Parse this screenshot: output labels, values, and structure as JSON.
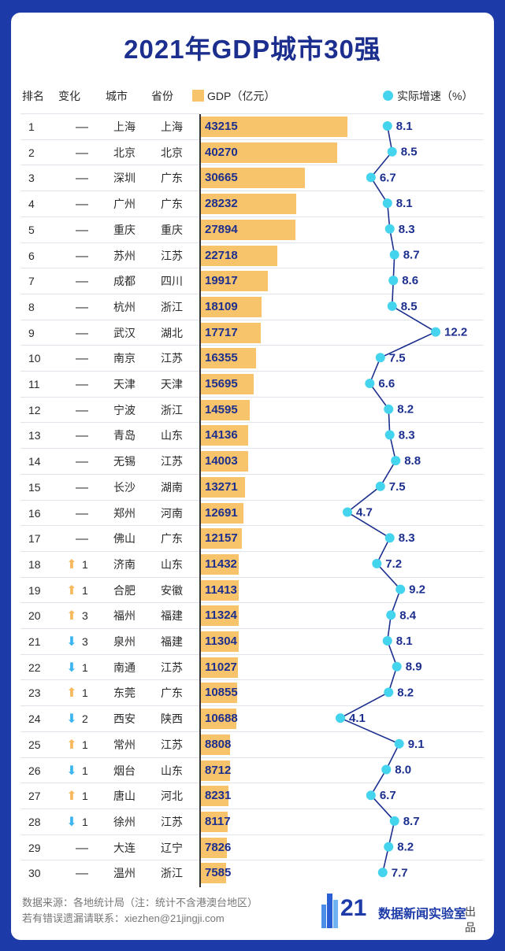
{
  "title": "2021年GDP城市30强",
  "headers": {
    "rank": "排名",
    "change": "变化",
    "city": "城市",
    "province": "省份",
    "gdp": "GDP（亿元）",
    "growth": "实际增速（%）"
  },
  "colors": {
    "bar": "#f8c46b",
    "dot": "#45d4ee",
    "line": "#1c2f8e",
    "up": "#f8b85c",
    "down": "#3cb5ee",
    "background": "#1c3aa8"
  },
  "chart_data": {
    "type": "table",
    "title": "2021年GDP城市30强",
    "columns": [
      "排名",
      "变化",
      "城市",
      "省份",
      "GDP（亿元）",
      "实际增速（%）"
    ],
    "gdp_max": 43215,
    "growth_range": [
      4.1,
      12.2
    ],
    "rows": [
      {
        "rank": "1",
        "dir": "none",
        "change": "",
        "city": "上海",
        "province": "上海",
        "gdp": 43215,
        "growth": "8.1"
      },
      {
        "rank": "2",
        "dir": "none",
        "change": "",
        "city": "北京",
        "province": "北京",
        "gdp": 40270,
        "growth": "8.5"
      },
      {
        "rank": "3",
        "dir": "none",
        "change": "",
        "city": "深圳",
        "province": "广东",
        "gdp": 30665,
        "growth": "6.7"
      },
      {
        "rank": "4",
        "dir": "none",
        "change": "",
        "city": "广州",
        "province": "广东",
        "gdp": 28232,
        "growth": "8.1"
      },
      {
        "rank": "5",
        "dir": "none",
        "change": "",
        "city": "重庆",
        "province": "重庆",
        "gdp": 27894,
        "growth": "8.3"
      },
      {
        "rank": "6",
        "dir": "none",
        "change": "",
        "city": "苏州",
        "province": "江苏",
        "gdp": 22718,
        "growth": "8.7"
      },
      {
        "rank": "7",
        "dir": "none",
        "change": "",
        "city": "成都",
        "province": "四川",
        "gdp": 19917,
        "growth": "8.6"
      },
      {
        "rank": "8",
        "dir": "none",
        "change": "",
        "city": "杭州",
        "province": "浙江",
        "gdp": 18109,
        "growth": "8.5"
      },
      {
        "rank": "9",
        "dir": "none",
        "change": "",
        "city": "武汉",
        "province": "湖北",
        "gdp": 17717,
        "growth": "12.2"
      },
      {
        "rank": "10",
        "dir": "none",
        "change": "",
        "city": "南京",
        "province": "江苏",
        "gdp": 16355,
        "growth": "7.5"
      },
      {
        "rank": "11",
        "dir": "none",
        "change": "",
        "city": "天津",
        "province": "天津",
        "gdp": 15695,
        "growth": "6.6"
      },
      {
        "rank": "12",
        "dir": "none",
        "change": "",
        "city": "宁波",
        "province": "浙江",
        "gdp": 14595,
        "growth": "8.2"
      },
      {
        "rank": "13",
        "dir": "none",
        "change": "",
        "city": "青岛",
        "province": "山东",
        "gdp": 14136,
        "growth": "8.3"
      },
      {
        "rank": "14",
        "dir": "none",
        "change": "",
        "city": "无锡",
        "province": "江苏",
        "gdp": 14003,
        "growth": "8.8"
      },
      {
        "rank": "15",
        "dir": "none",
        "change": "",
        "city": "长沙",
        "province": "湖南",
        "gdp": 13271,
        "growth": "7.5"
      },
      {
        "rank": "16",
        "dir": "none",
        "change": "",
        "city": "郑州",
        "province": "河南",
        "gdp": 12691,
        "growth": "4.7"
      },
      {
        "rank": "17",
        "dir": "none",
        "change": "",
        "city": "佛山",
        "province": "广东",
        "gdp": 12157,
        "growth": "8.3"
      },
      {
        "rank": "18",
        "dir": "up",
        "change": "1",
        "city": "济南",
        "province": "山东",
        "gdp": 11432,
        "growth": "7.2"
      },
      {
        "rank": "19",
        "dir": "up",
        "change": "1",
        "city": "合肥",
        "province": "安徽",
        "gdp": 11413,
        "growth": "9.2"
      },
      {
        "rank": "20",
        "dir": "up",
        "change": "3",
        "city": "福州",
        "province": "福建",
        "gdp": 11324,
        "growth": "8.4"
      },
      {
        "rank": "21",
        "dir": "down",
        "change": "3",
        "city": "泉州",
        "province": "福建",
        "gdp": 11304,
        "growth": "8.1"
      },
      {
        "rank": "22",
        "dir": "down",
        "change": "1",
        "city": "南通",
        "province": "江苏",
        "gdp": 11027,
        "growth": "8.9"
      },
      {
        "rank": "23",
        "dir": "up",
        "change": "1",
        "city": "东莞",
        "province": "广东",
        "gdp": 10855,
        "growth": "8.2"
      },
      {
        "rank": "24",
        "dir": "down",
        "change": "2",
        "city": "西安",
        "province": "陕西",
        "gdp": 10688,
        "growth": "4.1"
      },
      {
        "rank": "25",
        "dir": "up",
        "change": "1",
        "city": "常州",
        "province": "江苏",
        "gdp": 8808,
        "growth": "9.1"
      },
      {
        "rank": "26",
        "dir": "down",
        "change": "1",
        "city": "烟台",
        "province": "山东",
        "gdp": 8712,
        "growth": "8.0"
      },
      {
        "rank": "27",
        "dir": "up",
        "change": "1",
        "city": "唐山",
        "province": "河北",
        "gdp": 8231,
        "growth": "6.7"
      },
      {
        "rank": "28",
        "dir": "down",
        "change": "1",
        "city": "徐州",
        "province": "江苏",
        "gdp": 8117,
        "growth": "8.7"
      },
      {
        "rank": "29",
        "dir": "none",
        "change": "",
        "city": "大连",
        "province": "辽宁",
        "gdp": 7826,
        "growth": "8.2"
      },
      {
        "rank": "30",
        "dir": "none",
        "change": "",
        "city": "温州",
        "province": "浙江",
        "gdp": 7585,
        "growth": "7.7"
      }
    ]
  },
  "footer": {
    "source": "数据来源：各地统计局（注：统计不含港澳台地区）",
    "contact": "若有错误遗漏请联系：xiezhen@21jingji.com"
  },
  "logo": {
    "num": "21",
    "name": "数据新闻实验室",
    "suffix": "出品"
  }
}
